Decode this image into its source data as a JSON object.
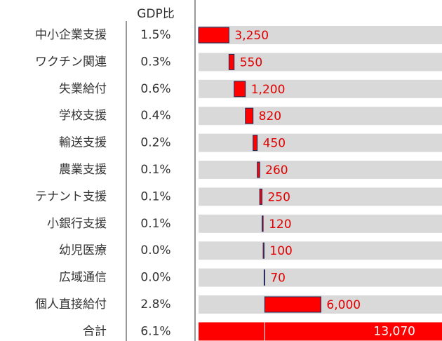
{
  "chart_data": {
    "type": "waterfall",
    "column_header": "GDP比",
    "categories": [
      "中小企業支援",
      "ワクチン関連",
      "失業給付",
      "学校支援",
      "輸送支援",
      "農業支援",
      "テナント支援",
      "小銀行支援",
      "幼児医療",
      "広域通信",
      "個人直接給付"
    ],
    "gdp_labels": [
      "1.5%",
      "0.3%",
      "0.6%",
      "0.4%",
      "0.2%",
      "0.1%",
      "0.1%",
      "0.1%",
      "0.0%",
      "0.0%",
      "2.8%"
    ],
    "values": [
      3250,
      550,
      1200,
      820,
      450,
      260,
      250,
      120,
      100,
      70,
      6000
    ],
    "value_labels": [
      "3,250",
      "550",
      "1,200",
      "820",
      "450",
      "260",
      "250",
      "120",
      "100",
      "70",
      "6,000"
    ],
    "total": {
      "label": "合計",
      "gdp_label": "6.1%",
      "value": 13070,
      "value_label": "13,070"
    },
    "xlim": [
      0,
      26000
    ],
    "color": "#ff0000",
    "edge_color": "#1f2a5a",
    "track_color": "#d9d9d9"
  }
}
